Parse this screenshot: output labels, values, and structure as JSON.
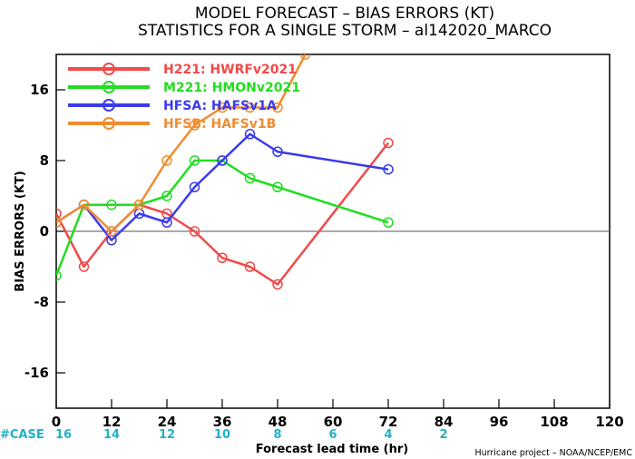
{
  "title_line1": "MODEL FORECAST – BIAS ERRORS (KT)",
  "title_line2": "STATISTICS FOR A SINGLE STORM – al142020_MARCO",
  "credit": "Hurricane project – NOAA/NCEP/EMC",
  "case_label": "#CASE",
  "case_color": "#20b2c8",
  "chart_data": {
    "type": "line",
    "xlabel": "Forecast lead time (hr)",
    "ylabel": "BIAS ERRORS (KT)",
    "xlim": [
      0,
      120
    ],
    "ylim": [
      -20,
      20
    ],
    "x_ticks": [
      0,
      12,
      24,
      36,
      48,
      60,
      72,
      84,
      96,
      108,
      120
    ],
    "y_ticks": [
      -16,
      -8,
      0,
      8,
      16
    ],
    "grid": false,
    "legend_position": "top-left",
    "case_counts": [
      {
        "x": 0,
        "n": "16"
      },
      {
        "x": 12,
        "n": "14"
      },
      {
        "x": 24,
        "n": "12"
      },
      {
        "x": 36,
        "n": "10"
      },
      {
        "x": 48,
        "n": "8"
      },
      {
        "x": 60,
        "n": "6"
      },
      {
        "x": 72,
        "n": "4"
      },
      {
        "x": 84,
        "n": "2"
      }
    ],
    "series": [
      {
        "name": "H221: HWRFv2021",
        "color": "#f04a4a",
        "x": [
          0,
          6,
          12,
          18,
          24,
          30,
          36,
          42,
          48,
          72
        ],
        "y": [
          2,
          -4,
          0,
          3,
          2,
          0,
          -3,
          -4,
          -6,
          10
        ]
      },
      {
        "name": "M221: HMONv2021",
        "color": "#22dd22",
        "x": [
          0,
          6,
          12,
          18,
          24,
          30,
          36,
          42,
          48,
          72
        ],
        "y": [
          -5,
          3,
          3,
          3,
          4,
          8,
          8,
          6,
          5,
          1
        ]
      },
      {
        "name": "HFSA: HAFSv1A",
        "color": "#3a3aee",
        "x": [
          0,
          6,
          12,
          18,
          24,
          30,
          36,
          42,
          48,
          72
        ],
        "y": [
          1,
          3,
          -1,
          2,
          1,
          5,
          8,
          11,
          9,
          7
        ]
      },
      {
        "name": "HFSB: HAFSv1B",
        "color": "#f08c30",
        "x": [
          0,
          6,
          12,
          18,
          24,
          30,
          36,
          42,
          48,
          54
        ],
        "y": [
          1,
          3,
          0,
          3,
          8,
          12,
          14,
          14,
          14,
          20
        ]
      }
    ]
  }
}
